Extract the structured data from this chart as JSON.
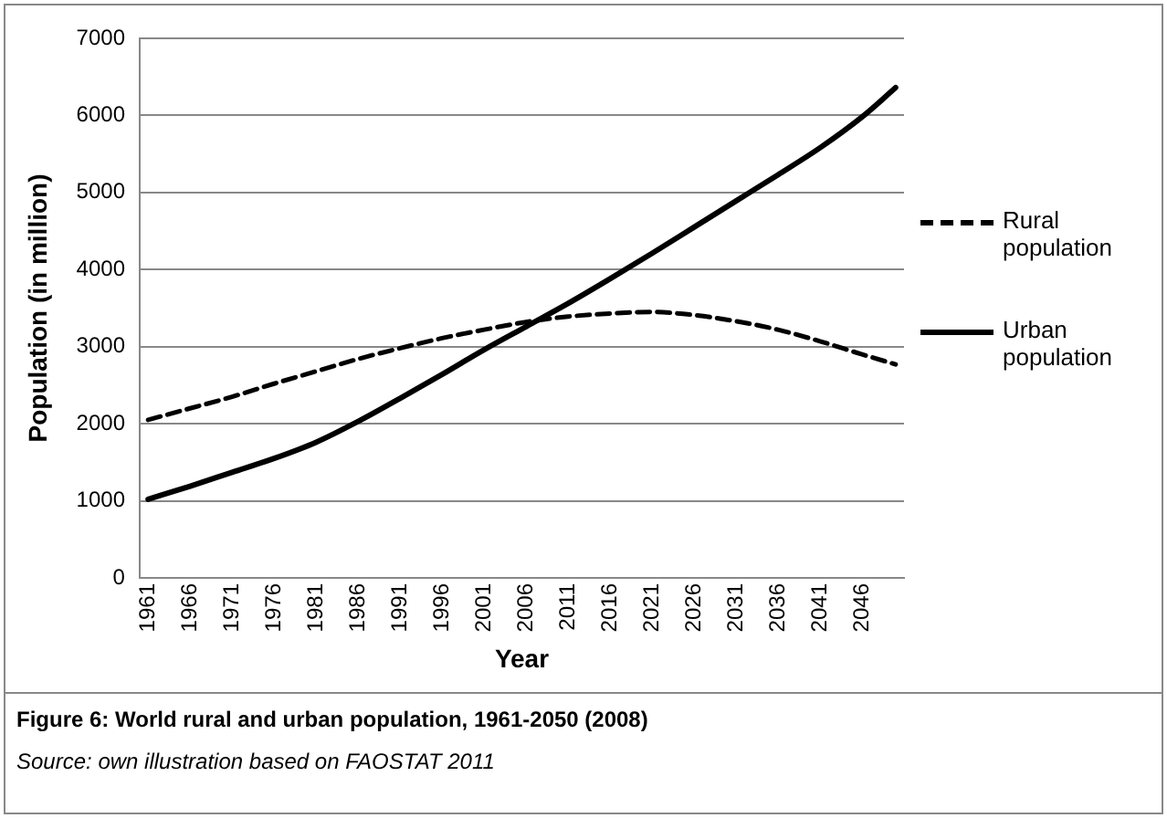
{
  "chart_data": {
    "type": "line",
    "xlabel": "Year",
    "ylabel": "Population (in million)",
    "annotations": [
      "Figure 6: World rural and urban population, 1961-2050 (2008)",
      "Source: own illustration based on FAOSTAT 2011"
    ],
    "x": [
      1961,
      1966,
      1971,
      1976,
      1981,
      1986,
      1991,
      1996,
      2001,
      2006,
      2011,
      2016,
      2021,
      2026,
      2031,
      2036,
      2041,
      2046,
      2050
    ],
    "series": [
      {
        "name": "Rural population",
        "color": "#000000",
        "line_style": "dashed",
        "values": [
          2050,
          2200,
          2350,
          2520,
          2680,
          2840,
          2980,
          3110,
          3220,
          3320,
          3390,
          3430,
          3450,
          3410,
          3330,
          3220,
          3070,
          2900,
          2770
        ]
      },
      {
        "name": "Urban population",
        "color": "#000000",
        "line_style": "solid",
        "values": [
          1020,
          1190,
          1370,
          1550,
          1760,
          2030,
          2330,
          2640,
          2960,
          3260,
          3560,
          3880,
          4210,
          4550,
          4890,
          5230,
          5580,
          5980,
          6360
        ]
      }
    ],
    "xlim": [
      1960,
      2051
    ],
    "xticks": [
      1961,
      1966,
      1971,
      1976,
      1981,
      1986,
      1991,
      1996,
      2001,
      2006,
      2011,
      2016,
      2021,
      2026,
      2031,
      2036,
      2041,
      2046
    ],
    "ylim": [
      0,
      7000
    ],
    "yticks": [
      0,
      1000,
      2000,
      3000,
      4000,
      5000,
      6000,
      7000
    ],
    "grid": "y",
    "legend": "right",
    "marker": "none"
  }
}
